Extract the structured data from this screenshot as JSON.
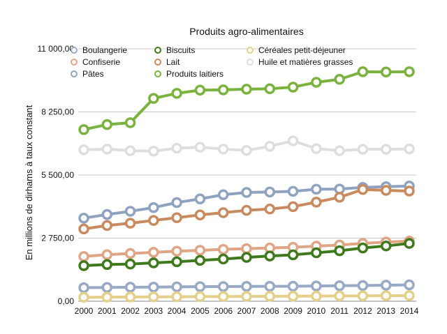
{
  "chart_data": {
    "type": "line",
    "title": "Produits agro-alimentaires",
    "xlabel": "",
    "ylabel": "En millions de dirhams  à taux constant",
    "ylim": [
      0,
      11000
    ],
    "y_ticks": [
      0,
      2750,
      5500,
      8250,
      11000
    ],
    "y_tick_labels": [
      "0,00",
      "2 750,00",
      "5 500,00",
      "8 250,00",
      "11 000,00"
    ],
    "x": [
      "2000",
      "2001",
      "2002",
      "2003",
      "2004",
      "2005",
      "2006",
      "2007",
      "2008",
      "2009",
      "2010",
      "2011",
      "2012",
      "2013",
      "2014"
    ],
    "grid": "horizontal",
    "legend_position": "top",
    "series": [
      {
        "name": "Boulangerie",
        "color": "#97a9c4",
        "values": [
          590,
          600,
          610,
          615,
          625,
          635,
          640,
          645,
          650,
          655,
          665,
          675,
          685,
          700,
          715
        ]
      },
      {
        "name": "Confiserie",
        "color": "#e0a585",
        "values": [
          1950,
          2030,
          2080,
          2130,
          2180,
          2220,
          2260,
          2290,
          2320,
          2350,
          2400,
          2450,
          2520,
          2580,
          2620
        ]
      },
      {
        "name": "Pâtes",
        "color": "#8fa3c0",
        "values": [
          3620,
          3780,
          3920,
          4080,
          4300,
          4460,
          4640,
          4740,
          4760,
          4790,
          4880,
          4890,
          4960,
          4990,
          5020
        ]
      },
      {
        "name": "Biscuits",
        "color": "#3e7a1c",
        "values": [
          1550,
          1600,
          1620,
          1670,
          1720,
          1780,
          1840,
          1910,
          1970,
          2020,
          2110,
          2200,
          2320,
          2410,
          2520
        ]
      },
      {
        "name": "Lait",
        "color": "#c88a5e",
        "values": [
          3150,
          3300,
          3400,
          3520,
          3640,
          3760,
          3860,
          3960,
          4020,
          4120,
          4320,
          4530,
          4870,
          4830,
          4800
        ]
      },
      {
        "name": "Produits laitiers",
        "color": "#79b33e",
        "values": [
          7480,
          7700,
          7780,
          8840,
          9060,
          9200,
          9210,
          9240,
          9260,
          9330,
          9540,
          9670,
          10000,
          9990,
          10000
        ]
      },
      {
        "name": "Céréales petit-déjeuner",
        "color": "#e4d08a",
        "values": [
          170,
          180,
          185,
          190,
          195,
          200,
          205,
          210,
          215,
          220,
          225,
          230,
          235,
          240,
          245
        ]
      },
      {
        "name": "Huile et matières grasses",
        "color": "#dedede",
        "values": [
          6600,
          6630,
          6560,
          6540,
          6670,
          6710,
          6630,
          6570,
          6750,
          6990,
          6650,
          6560,
          6620,
          6620,
          6640
        ]
      }
    ]
  }
}
